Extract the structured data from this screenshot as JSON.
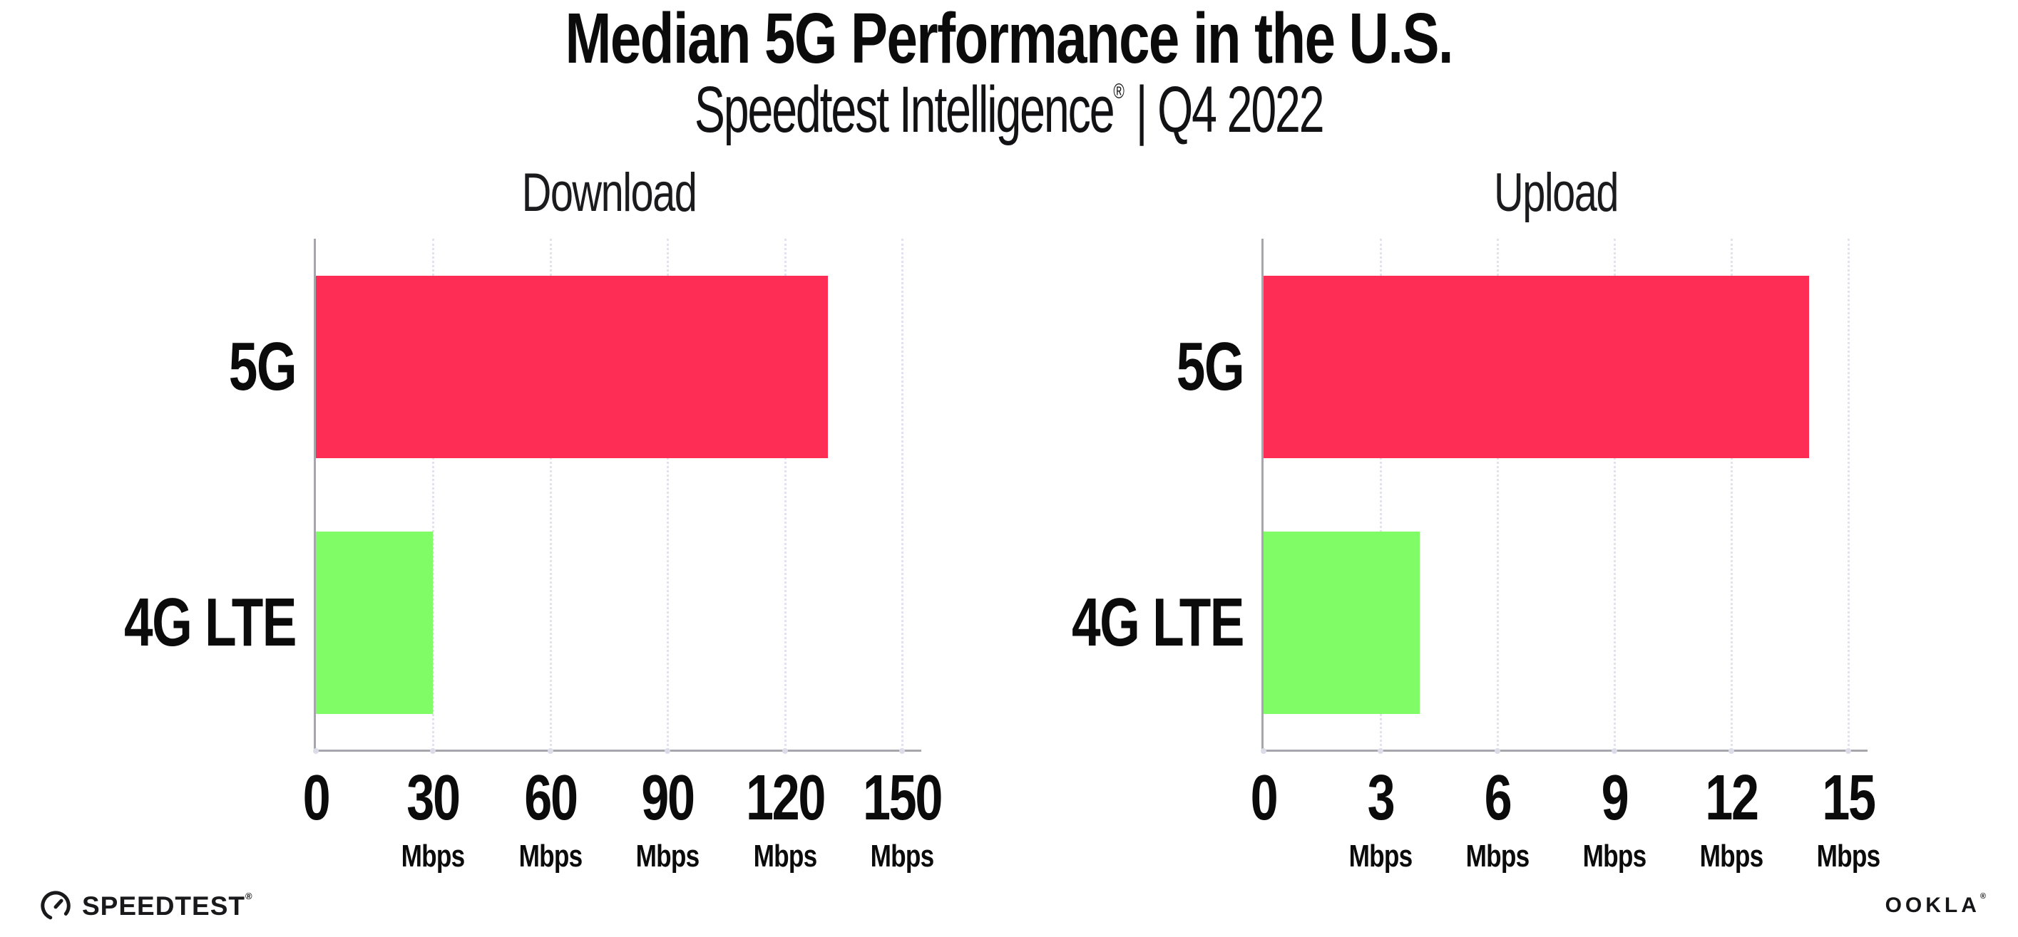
{
  "header": {
    "title": "Median 5G Performance in the U.S.",
    "subtitle_brand": "Speedtest Intelligence",
    "subtitle_reg": "®",
    "subtitle_rest": " | Q4 2022"
  },
  "chart_data": [
    {
      "type": "bar",
      "orientation": "horizontal",
      "title": "Download",
      "categories": [
        "5G",
        "4G LTE"
      ],
      "values": [
        131,
        30
      ],
      "unit": "Mbps",
      "xlabel": "",
      "ylabel": "",
      "xlim": [
        0,
        150
      ],
      "xticks": [
        0,
        30,
        60,
        90,
        120,
        150
      ],
      "bar_colors": [
        "#FD2D55",
        "#80FC66"
      ],
      "grid": "vertical-dotted",
      "legend": "none"
    },
    {
      "type": "bar",
      "orientation": "horizontal",
      "title": "Upload",
      "categories": [
        "5G",
        "4G LTE"
      ],
      "values": [
        14,
        4
      ],
      "unit": "Mbps",
      "xlabel": "",
      "ylabel": "",
      "xlim": [
        0,
        15
      ],
      "xticks": [
        0,
        3,
        6,
        9,
        12,
        15
      ],
      "bar_colors": [
        "#FD2D55",
        "#80FC66"
      ],
      "grid": "vertical-dotted",
      "legend": "none"
    }
  ],
  "colors": {
    "bar_5g": "#FD2D55",
    "bar_4g_lte": "#80FC66",
    "axis": "#A6A6AC",
    "gridline": "#E2E2EE"
  },
  "footer": {
    "speedtest_label": "SPEEDTEST",
    "speedtest_reg": "®",
    "ookla_label": "OOKLA",
    "ookla_reg": "®"
  }
}
